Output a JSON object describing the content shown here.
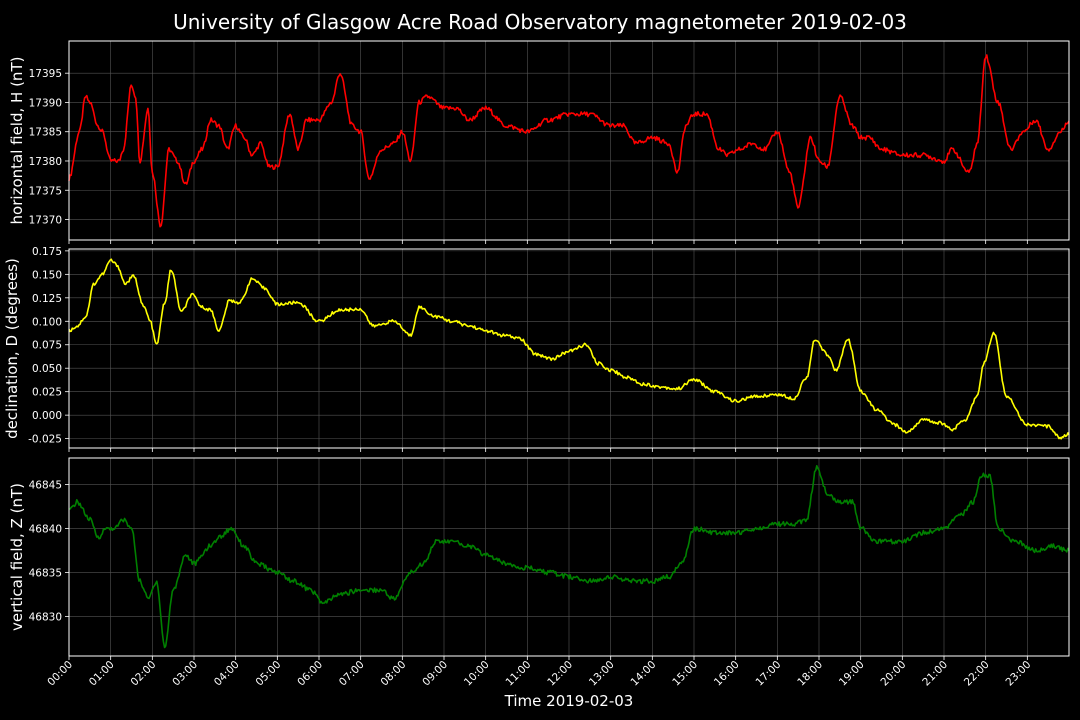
{
  "chart_data": {
    "title": "University of Glasgow Acre Road Observatory magnetometer 2019-02-03",
    "xlabel": "Time 2019-02-03",
    "x_ticks": [
      "00:00",
      "01:00",
      "02:00",
      "03:00",
      "04:00",
      "05:00",
      "06:00",
      "07:00",
      "08:00",
      "09:00",
      "10:00",
      "11:00",
      "12:00",
      "13:00",
      "14:00",
      "15:00",
      "16:00",
      "17:00",
      "18:00",
      "19:00",
      "20:00",
      "21:00",
      "22:00",
      "23:00"
    ],
    "xlim": [
      0,
      24
    ],
    "grid": true,
    "panels": [
      {
        "type": "line",
        "ylabel": "horizontal field, H (nT)",
        "color": "#ff0000",
        "ylim": [
          17366.5,
          17400.5
        ],
        "yticks": [
          17370,
          17375,
          17380,
          17385,
          17390,
          17395
        ],
        "x": [
          0.0,
          0.25,
          0.4,
          0.5,
          0.7,
          0.8,
          1.0,
          1.2,
          1.3,
          1.5,
          1.6,
          1.7,
          1.9,
          2.0,
          2.2,
          2.4,
          2.6,
          2.8,
          3.0,
          3.2,
          3.4,
          3.6,
          3.8,
          4.0,
          4.2,
          4.4,
          4.6,
          4.8,
          5.0,
          5.3,
          5.5,
          5.7,
          6.0,
          6.3,
          6.5,
          6.8,
          7.0,
          7.2,
          7.5,
          7.8,
          8.0,
          8.2,
          8.4,
          8.6,
          9.0,
          9.3,
          9.6,
          10.0,
          10.5,
          11.0,
          11.5,
          12.0,
          12.5,
          13.0,
          13.3,
          13.6,
          14.0,
          14.4,
          14.6,
          14.8,
          15.0,
          15.3,
          15.6,
          15.8,
          16.1,
          16.4,
          16.7,
          17.0,
          17.3,
          17.5,
          17.8,
          18.0,
          18.2,
          18.5,
          18.8,
          19.0,
          19.2,
          19.5,
          20.0,
          20.5,
          21.0,
          21.2,
          21.6,
          21.8,
          22.0,
          22.3,
          22.6,
          22.9,
          23.2,
          23.5,
          23.8,
          24.0
        ],
        "values": [
          17377,
          17385,
          17391,
          17390,
          17386,
          17385,
          17380,
          17380,
          17382,
          17393,
          17391,
          17380,
          17389,
          17378,
          17369,
          17382,
          17380,
          17376,
          17380,
          17382,
          17387,
          17386,
          17382,
          17386,
          17384,
          17381,
          17383,
          17379,
          17379,
          17388,
          17382,
          17387,
          17387,
          17390,
          17395,
          17386,
          17385,
          17377,
          17382,
          17383,
          17385,
          17380,
          17390,
          17391,
          17389,
          17389,
          17387,
          17389,
          17386,
          17385,
          17387,
          17388,
          17388,
          17386,
          17386,
          17383,
          17384,
          17383,
          17378,
          17386,
          17388,
          17388,
          17382,
          17381,
          17382,
          17383,
          17382,
          17385,
          17378,
          17372,
          17384,
          17380,
          17379,
          17391,
          17386,
          17384,
          17384,
          17382,
          17381,
          17381,
          17380,
          17382,
          17378,
          17383,
          17398,
          17390,
          17382,
          17385,
          17387,
          17382,
          17385,
          17387
        ]
      },
      {
        "type": "line",
        "ylabel": "declination, D (degrees)",
        "color": "#ffff00",
        "ylim": [
          -0.035,
          0.177
        ],
        "yticks": [
          -0.025,
          0.0,
          0.025,
          0.05,
          0.075,
          0.1,
          0.125,
          0.15,
          0.175
        ],
        "x": [
          0.0,
          0.2,
          0.4,
          0.6,
          0.8,
          1.0,
          1.15,
          1.35,
          1.55,
          1.8,
          1.95,
          2.1,
          2.3,
          2.45,
          2.7,
          2.95,
          3.2,
          3.4,
          3.6,
          3.85,
          4.1,
          4.4,
          4.7,
          5.0,
          5.5,
          6.0,
          6.5,
          7.0,
          7.3,
          7.8,
          8.2,
          8.4,
          8.8,
          9.2,
          9.6,
          10.0,
          10.4,
          10.8,
          11.2,
          11.6,
          12.0,
          12.4,
          12.7,
          13.0,
          13.4,
          13.8,
          14.2,
          14.6,
          15.0,
          15.5,
          16.0,
          16.5,
          17.0,
          17.4,
          17.7,
          17.9,
          18.2,
          18.4,
          18.7,
          19.0,
          19.4,
          19.8,
          20.1,
          20.5,
          20.9,
          21.2,
          21.5,
          21.8,
          21.95,
          22.2,
          22.5,
          23.0,
          23.5,
          23.8,
          24.0
        ],
        "values": [
          0.09,
          0.095,
          0.105,
          0.14,
          0.15,
          0.165,
          0.16,
          0.14,
          0.148,
          0.115,
          0.1,
          0.075,
          0.12,
          0.155,
          0.11,
          0.128,
          0.115,
          0.112,
          0.09,
          0.122,
          0.12,
          0.145,
          0.135,
          0.118,
          0.12,
          0.1,
          0.112,
          0.113,
          0.095,
          0.1,
          0.085,
          0.115,
          0.105,
          0.1,
          0.095,
          0.09,
          0.085,
          0.082,
          0.065,
          0.06,
          0.068,
          0.075,
          0.055,
          0.048,
          0.04,
          0.033,
          0.03,
          0.028,
          0.038,
          0.025,
          0.015,
          0.02,
          0.022,
          0.018,
          0.04,
          0.08,
          0.065,
          0.048,
          0.08,
          0.025,
          0.005,
          -0.01,
          -0.018,
          -0.005,
          -0.008,
          -0.015,
          -0.005,
          0.02,
          0.055,
          0.087,
          0.02,
          -0.01,
          -0.012,
          -0.024,
          -0.02
        ]
      },
      {
        "type": "line",
        "ylabel": "vertical field, Z (nT)",
        "color": "#008000",
        "ylim": [
          46825.5,
          46848.0
        ],
        "yticks": [
          46830,
          46835,
          46840,
          46845
        ],
        "x": [
          0.0,
          0.2,
          0.5,
          0.7,
          0.9,
          1.1,
          1.3,
          1.5,
          1.7,
          1.9,
          2.1,
          2.3,
          2.5,
          2.8,
          3.0,
          3.4,
          3.6,
          3.9,
          4.2,
          4.5,
          5.0,
          5.4,
          5.8,
          6.1,
          6.5,
          7.0,
          7.5,
          7.8,
          8.2,
          8.5,
          8.8,
          9.2,
          9.6,
          10.0,
          10.5,
          11.0,
          11.5,
          12.0,
          12.5,
          13.0,
          13.5,
          14.0,
          14.4,
          14.7,
          15.0,
          15.5,
          16.0,
          16.5,
          17.0,
          17.4,
          17.7,
          17.95,
          18.2,
          18.5,
          18.8,
          19.0,
          19.4,
          20.0,
          20.5,
          21.0,
          21.4,
          21.7,
          21.9,
          22.1,
          22.3,
          22.7,
          23.2,
          23.6,
          24.0
        ],
        "values": [
          46842,
          46843,
          46841,
          46839,
          46840,
          46840,
          46841,
          46840,
          46834,
          46832,
          46834,
          46826.5,
          46833,
          46837,
          46836,
          46838,
          46839,
          46840,
          46838,
          46836,
          46835,
          46834,
          46833,
          46831.5,
          46832.5,
          46833,
          46833,
          46832,
          46835,
          46836,
          46838.5,
          46838.5,
          46838,
          46837,
          46836,
          46835.5,
          46835,
          46834.5,
          46834,
          46834.5,
          46834,
          46834,
          46834.5,
          46836,
          46840,
          46839.5,
          46839.5,
          46840,
          46840.5,
          46840.5,
          46841,
          46847,
          46844,
          46843,
          46843,
          46840,
          46838.5,
          46838.5,
          46839.5,
          46840,
          46841.5,
          46843,
          46846,
          46846,
          46840,
          46838.5,
          46837.5,
          46838,
          46837.5
        ]
      }
    ]
  }
}
